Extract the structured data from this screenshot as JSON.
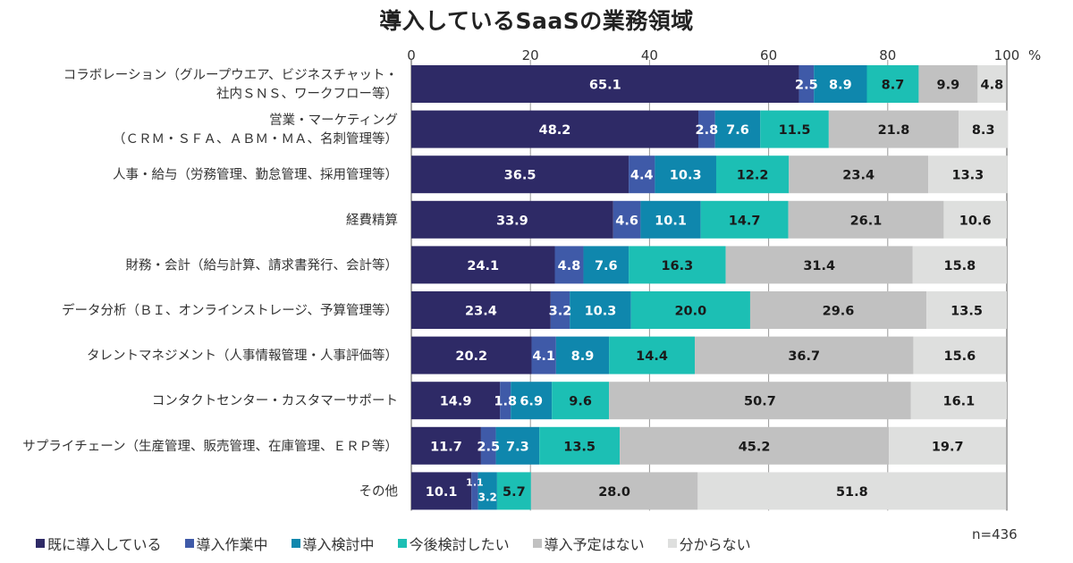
{
  "chart_data": {
    "type": "bar",
    "orientation": "horizontal",
    "stacked": true,
    "title": "導入しているSaaSの業務領域",
    "xlabel": "",
    "ylabel": "",
    "unit_label": "%",
    "xlim": [
      0,
      100
    ],
    "xticks": [
      0,
      20,
      40,
      60,
      80,
      100
    ],
    "grid": true,
    "legend_position": "bottom",
    "note": "n=436",
    "categories": [
      [
        "コラボレーション（グループウエア、ビジネスチャット・",
        "社内ＳＮＳ、ワークフロー等）"
      ],
      [
        "営業・マーケティング",
        "（ＣＲＭ・ＳＦＡ、ＡＢＭ・ＭＡ、名刺管理等）"
      ],
      [
        "人事・給与（労務管理、勤怠管理、採用管理等）"
      ],
      [
        "経費精算"
      ],
      [
        "財務・会計（給与計算、請求書発行、会計等）"
      ],
      [
        "データ分析（ＢＩ、オンラインストレージ、予算管理等）"
      ],
      [
        "タレントマネジメント（人事情報管理・人事評価等）"
      ],
      [
        "コンタクトセンター・カスタマーサポート"
      ],
      [
        "サプライチェーン（生産管理、販売管理、在庫管理、ＥＲＰ等）"
      ],
      [
        "その他"
      ]
    ],
    "series": [
      {
        "name": "既に導入している",
        "color": "#2e2a66",
        "label_color": "#ffffff",
        "values": [
          65.1,
          48.2,
          36.5,
          33.9,
          24.1,
          23.4,
          20.2,
          14.9,
          11.7,
          10.1
        ]
      },
      {
        "name": "導入作業中",
        "color": "#3f5aa8",
        "label_color": "#ffffff",
        "values": [
          2.5,
          2.8,
          4.4,
          4.6,
          4.8,
          3.2,
          4.1,
          1.8,
          2.5,
          1.1
        ]
      },
      {
        "name": "導入検討中",
        "color": "#0f87ad",
        "label_color": "#ffffff",
        "values": [
          8.9,
          7.6,
          10.3,
          10.1,
          7.6,
          10.3,
          8.9,
          6.9,
          7.3,
          3.2
        ]
      },
      {
        "name": "今後検討したい",
        "color": "#1cbfb4",
        "label_color": "#1a1a1a",
        "values": [
          8.7,
          11.5,
          12.2,
          14.7,
          16.3,
          20.0,
          14.4,
          9.6,
          13.5,
          5.7
        ]
      },
      {
        "name": "導入予定はない",
        "color": "#c1c1c1",
        "label_color": "#1a1a1a",
        "values": [
          9.9,
          21.8,
          23.4,
          26.1,
          31.4,
          29.6,
          36.7,
          50.7,
          45.2,
          28.0
        ]
      },
      {
        "name": "分からない",
        "color": "#dedfde",
        "label_color": "#1a1a1a",
        "values": [
          4.8,
          8.3,
          13.3,
          10.6,
          15.8,
          13.5,
          15.6,
          16.1,
          19.7,
          51.8
        ]
      }
    ]
  }
}
